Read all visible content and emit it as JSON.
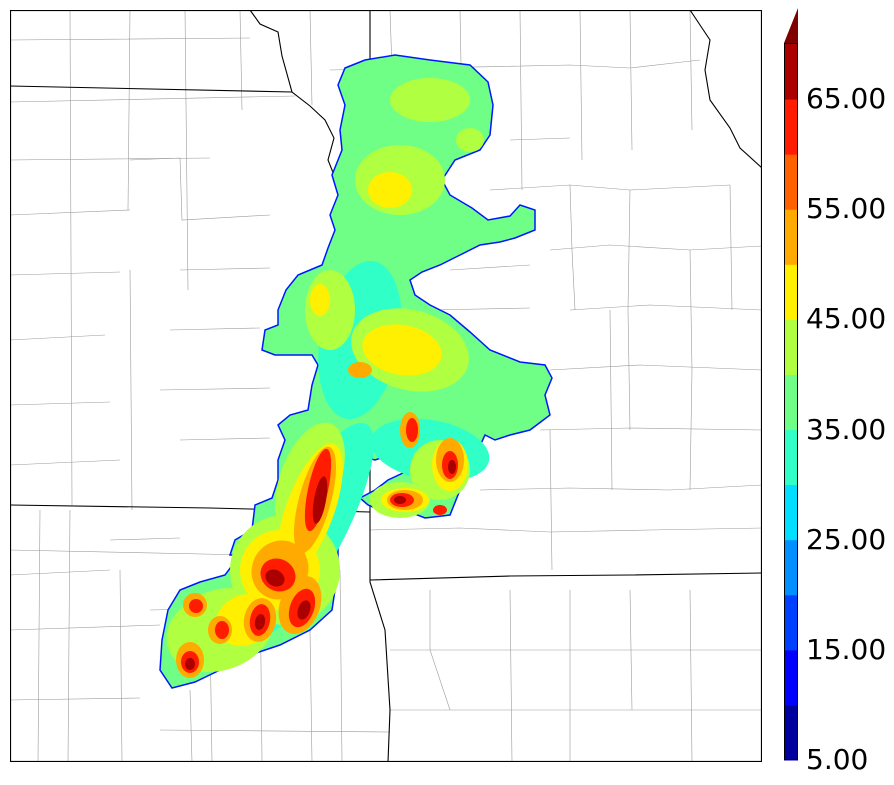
{
  "colorbar": {
    "tick_labels": [
      "5.00",
      "15.00",
      "25.00",
      "35.00",
      "45.00",
      "55.00",
      "65.00"
    ],
    "levels": [
      5,
      10,
      15,
      20,
      25,
      30,
      35,
      40,
      45,
      50,
      55,
      60,
      65,
      70
    ],
    "colors": [
      "#00009f",
      "#0000ff",
      "#0040ff",
      "#0090ff",
      "#00dfff",
      "#30ffc8",
      "#70ff86",
      "#b0ff40",
      "#ffef00",
      "#ffaa00",
      "#ff6000",
      "#ff1c00",
      "#aa0000"
    ],
    "extend": "max",
    "extend_color": "#7f0000"
  },
  "map": {
    "background": "#ffffff",
    "state_line_color": "#000000",
    "county_line_color": "#9a9a9a"
  }
}
